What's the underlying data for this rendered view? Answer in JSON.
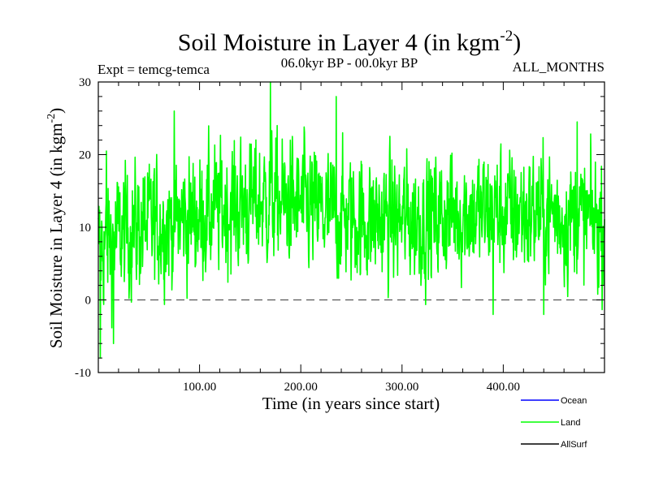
{
  "chart_data": {
    "type": "line",
    "title": "Soil Moisture in Layer 4 (in kgm",
    "title_superscript": "-2",
    "title_close": ")",
    "subtitle": "06.0kyr BP - 00.0kyr BP",
    "expt_label": "Expt = temcg-temca",
    "months_label": "ALL_MONTHS",
    "xlabel": "Time (in years since start)",
    "ylabel": "Soil Moisture in Layer 4 (in kgm",
    "ylabel_superscript": "-2",
    "ylabel_close": ")",
    "xlim": [
      0,
      500
    ],
    "ylim": [
      -10,
      30
    ],
    "x_ticks": [
      100,
      200,
      300,
      400
    ],
    "x_tick_labels": [
      "100.00",
      "200.00",
      "300.00",
      "400.00"
    ],
    "y_ticks": [
      -10,
      0,
      10,
      20,
      30
    ],
    "y_tick_labels": [
      "-10",
      "0",
      "10",
      "20",
      "30"
    ],
    "zero_line": 0,
    "series": [
      {
        "name": "Ocean",
        "color": "#0000ff",
        "values": []
      },
      {
        "name": "Land",
        "color": "#00ff00",
        "mean_profile_x": [
          0,
          10,
          20,
          40,
          60,
          80,
          100,
          120,
          140,
          160,
          180,
          200,
          220,
          240,
          260,
          280,
          300,
          320,
          340,
          360,
          380,
          400,
          420,
          440,
          460,
          480,
          500
        ],
        "mean_profile_y": [
          7,
          8,
          9,
          10,
          10.5,
          11,
          11.5,
          12.5,
          13,
          13.5,
          13.5,
          13,
          12,
          11.5,
          11,
          11,
          11,
          11,
          11.5,
          12,
          12,
          12,
          12,
          12,
          11.5,
          11,
          10.5
        ],
        "amplitude": 5.5,
        "annotated_extremes": [
          {
            "x": 2,
            "y": -8
          },
          {
            "x": 8,
            "y": 20.5
          },
          {
            "x": 15,
            "y": -6
          },
          {
            "x": 75,
            "y": 26
          },
          {
            "x": 170,
            "y": 30
          },
          {
            "x": 235,
            "y": 28
          },
          {
            "x": 390,
            "y": 24
          },
          {
            "x": 390,
            "y": -2
          },
          {
            "x": 440,
            "y": -2
          },
          {
            "x": 473,
            "y": 24.5
          }
        ]
      },
      {
        "name": "AllSurf",
        "color": "#000000",
        "values": []
      }
    ],
    "legend": [
      {
        "label": "Ocean",
        "color": "#0000ff"
      },
      {
        "label": "Land",
        "color": "#00ff00"
      },
      {
        "label": "AllSurf",
        "color": "#000000"
      }
    ],
    "legend_position": "bottom-right",
    "grid": false
  }
}
